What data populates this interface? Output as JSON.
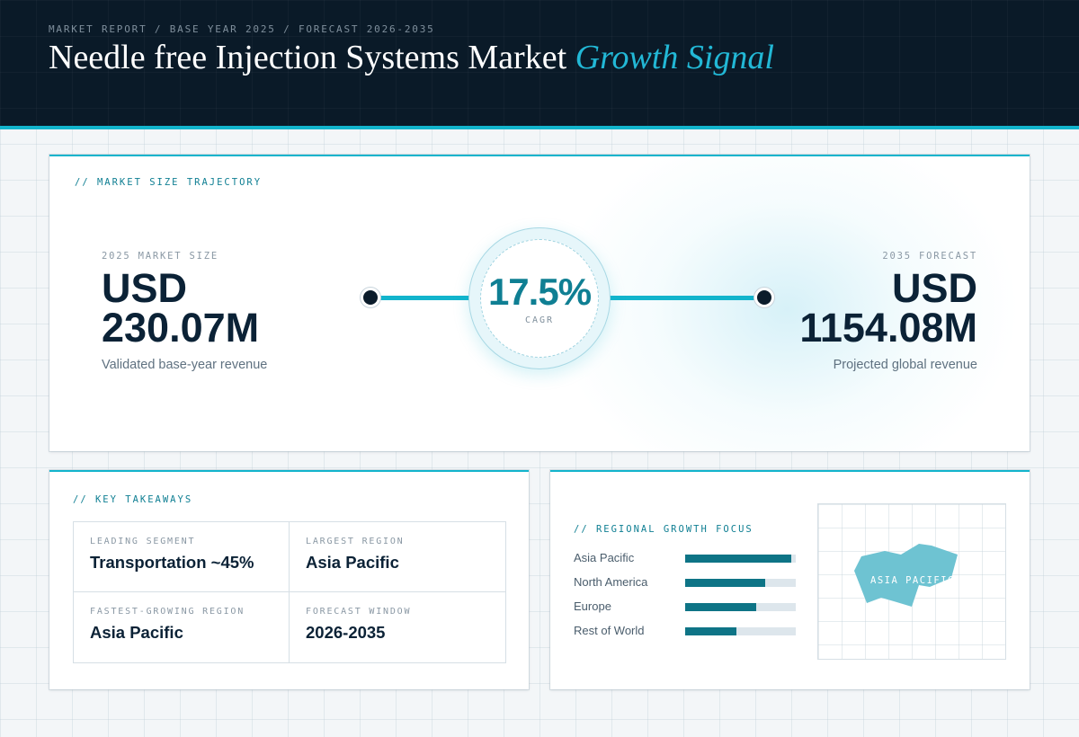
{
  "header": {
    "breadcrumb": "MARKET REPORT / BASE YEAR 2025 / FORECAST 2026-2035",
    "title_main": "Needle free Injection Systems Market",
    "title_accent": "Growth Signal"
  },
  "trajectory": {
    "label": "// MARKET SIZE TRAJECTORY",
    "base": {
      "label": "2025 MARKET SIZE",
      "currency": "USD",
      "value": "230.07M",
      "caption": "Validated base-year revenue"
    },
    "cagr": {
      "value": "17.5%",
      "label": "CAGR"
    },
    "forecast": {
      "label": "2035 FORECAST",
      "currency": "USD",
      "value": "1154.08M",
      "caption": "Projected global revenue"
    }
  },
  "takeaways": {
    "label": "// KEY TAKEAWAYS",
    "items": [
      {
        "label": "LEADING SEGMENT",
        "value": "Transportation ~45%"
      },
      {
        "label": "LARGEST REGION",
        "value": "Asia Pacific"
      },
      {
        "label": "FASTEST-GROWING REGION",
        "value": "Asia Pacific"
      },
      {
        "label": "FORECAST WINDOW",
        "value": "2026-2035"
      }
    ]
  },
  "regional": {
    "label": "// REGIONAL GROWTH FOCUS",
    "regions": [
      {
        "name": "Asia Pacific",
        "level": 0.96
      },
      {
        "name": "North America",
        "level": 0.72
      },
      {
        "name": "Europe",
        "level": 0.64
      },
      {
        "name": "Rest of World",
        "level": 0.46
      }
    ],
    "map_label": "ASIA PACIFIC"
  },
  "colors": {
    "accent": "#12b4cc",
    "bar_fill": "#0e7486",
    "map_shape": "#6ec3d2"
  }
}
